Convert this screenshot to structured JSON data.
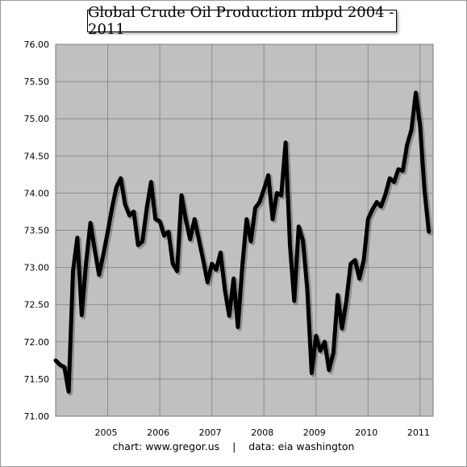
{
  "chart_data": {
    "type": "line",
    "title": "Global Crude Oil Production mbpd 2004 - 2011",
    "footer": {
      "credit": "chart: www.gregor.us",
      "separator": "|",
      "source": "data: eia washington"
    },
    "ylim": [
      71.0,
      76.0
    ],
    "xlim": [
      2004.0,
      2011.25
    ],
    "y_ticks": [
      "71.00",
      "71.50",
      "72.00",
      "72.50",
      "73.00",
      "73.50",
      "74.00",
      "74.50",
      "75.00",
      "75.50",
      "76.00"
    ],
    "x_ticks": [
      "2005",
      "2006",
      "2007",
      "2008",
      "2009",
      "2010",
      "2011"
    ],
    "grid": true,
    "plot_background": "#c0c0c0",
    "line_color": "#000000",
    "series": [
      {
        "x": [
          2004.0,
          2004.083,
          2004.167,
          2004.25,
          2004.333,
          2004.417,
          2004.5,
          2004.583,
          2004.667,
          2004.75,
          2004.833,
          2004.917,
          2005.0,
          2005.083,
          2005.167,
          2005.25,
          2005.333,
          2005.417,
          2005.5,
          2005.583,
          2005.667,
          2005.75,
          2005.833,
          2005.917,
          2006.0,
          2006.083,
          2006.167,
          2006.25,
          2006.333,
          2006.417,
          2006.5,
          2006.583,
          2006.667,
          2006.75,
          2006.833,
          2006.917,
          2007.0,
          2007.083,
          2007.167,
          2007.25,
          2007.333,
          2007.417,
          2007.5,
          2007.583,
          2007.667,
          2007.75,
          2007.833,
          2007.917,
          2008.0,
          2008.083,
          2008.167,
          2008.25,
          2008.333,
          2008.417,
          2008.5,
          2008.583,
          2008.667,
          2008.75,
          2008.833,
          2008.917,
          2009.0,
          2009.083,
          2009.167,
          2009.25,
          2009.333,
          2009.417,
          2009.5,
          2009.583,
          2009.667,
          2009.75,
          2009.833,
          2009.917,
          2010.0,
          2010.083,
          2010.167,
          2010.25,
          2010.333,
          2010.417,
          2010.5,
          2010.583,
          2010.667,
          2010.75,
          2010.833,
          2010.917,
          2011.0,
          2011.083,
          2011.167
        ],
        "y": [
          71.75,
          71.69,
          71.66,
          71.33,
          72.95,
          73.4,
          72.36,
          73.05,
          73.6,
          73.24,
          72.9,
          73.18,
          73.48,
          73.8,
          74.08,
          74.2,
          73.85,
          73.7,
          73.75,
          73.3,
          73.35,
          73.8,
          74.15,
          73.65,
          73.62,
          73.43,
          73.48,
          73.05,
          72.95,
          73.97,
          73.64,
          73.38,
          73.65,
          73.38,
          73.1,
          72.8,
          73.05,
          72.97,
          73.2,
          72.7,
          72.35,
          72.85,
          72.2,
          73.0,
          73.65,
          73.35,
          73.8,
          73.88,
          74.05,
          74.24,
          73.65,
          74.0,
          73.97,
          74.68,
          73.3,
          72.55,
          73.55,
          73.36,
          72.7,
          71.58,
          72.08,
          71.88,
          72.0,
          71.62,
          71.85,
          72.63,
          72.18,
          72.55,
          73.05,
          73.1,
          72.85,
          73.1,
          73.65,
          73.78,
          73.88,
          73.82,
          73.98,
          74.2,
          74.15,
          74.32,
          74.3,
          74.65,
          74.85,
          75.35,
          74.9,
          74.05,
          73.48
        ]
      }
    ]
  }
}
